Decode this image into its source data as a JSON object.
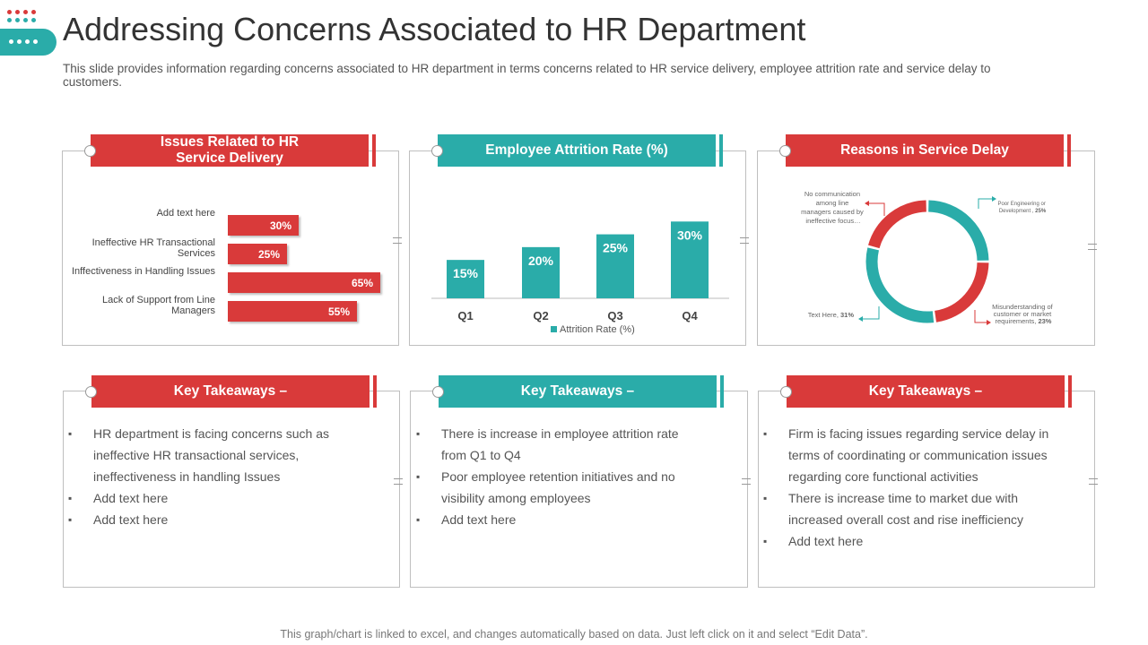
{
  "page": {
    "title": "Addressing Concerns Associated to HR Department",
    "subtitle": "This slide provides information regarding concerns associated to HR department in terms concerns related to HR service delivery, employee attrition rate and service delay to customers.",
    "footer": "This graph/chart is linked to excel, and changes automatically based on data. Just left click on it and select “Edit Data”."
  },
  "colors": {
    "red": "#d93a3a",
    "teal": "#2aaca9",
    "border": "#bfbfbf"
  },
  "panels": {
    "hr_service": {
      "header": "Issues Related to HR Service Delivery",
      "header_line1": "Issues Related to HR",
      "header_line2": "Service Delivery"
    },
    "attrition": {
      "header": "Employee Attrition Rate (%)"
    },
    "delay": {
      "header": "Reasons in Service Delay"
    },
    "takeaways1": {
      "header": "Key Takeaways –",
      "items": [
        "HR department  is facing concerns such as ineffective  HR transactional services, ineffectiveness  in handling Issues",
        "Add text here",
        "Add text here"
      ]
    },
    "takeaways2": {
      "header": "Key Takeaways –",
      "items": [
        "There is increase in employee attrition rate from Q1 to Q4",
        "Poor employee retention initiatives and no visibility among employees",
        "Add text here"
      ]
    },
    "takeaways3": {
      "header": "Key Takeaways –",
      "items": [
        "Firm is facing issues regarding service delay in terms of coordinating or communication issues regarding core functional activities",
        "There is increase time to market due with increased overall cost and rise inefficiency",
        "Add text here"
      ]
    }
  },
  "chart_data": [
    {
      "type": "bar",
      "orientation": "horizontal",
      "title": "Issues Related to HR Service Delivery",
      "categories": [
        "Add text here",
        "Ineffective HR Transactional Services",
        "Inffectiveness in Handling Issues",
        "Lack of Support from Line Managers"
      ],
      "values": [
        30,
        25,
        65,
        55
      ],
      "value_labels": [
        "30%",
        "25%",
        "65%",
        "55%"
      ],
      "xlim": [
        0,
        100
      ]
    },
    {
      "type": "bar",
      "title": "Employee Attrition Rate (%)",
      "categories": [
        "Q1",
        "Q2",
        "Q3",
        "Q4"
      ],
      "series": [
        {
          "name": "Attrition Rate (%)",
          "values": [
            15,
            20,
            25,
            30
          ]
        }
      ],
      "value_labels": [
        "15%",
        "20%",
        "25%",
        "30%"
      ],
      "legend": "bottom",
      "ylim": [
        0,
        35
      ]
    },
    {
      "type": "pie",
      "style": "donut",
      "title": "Reasons in Service Delay",
      "slices": [
        {
          "label_main": "Poor Engineering  or Development",
          "value_label": "25%",
          "value": 25,
          "color": "#2aaca9"
        },
        {
          "label_main": "Misunderstanding of customer or market requirements",
          "value_label": "23%",
          "value": 23,
          "color": "#d93a3a"
        },
        {
          "label_main": "Text Here",
          "value_label": "31%",
          "value": 31,
          "color": "#2aaca9"
        },
        {
          "label_main": "No communication among line managers caused by ineffective focus…",
          "value_label": "",
          "value": 21,
          "color": "#d93a3a"
        }
      ]
    }
  ]
}
